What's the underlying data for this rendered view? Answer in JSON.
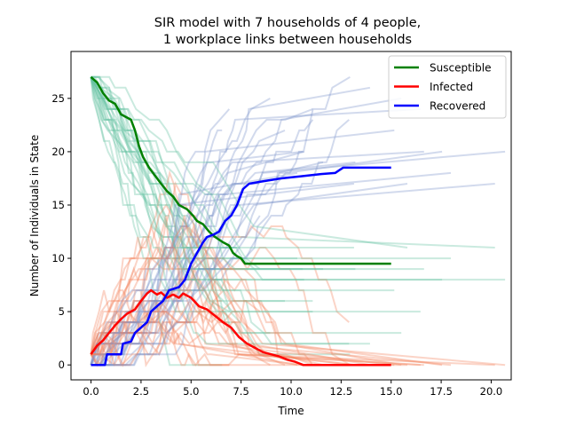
{
  "chart_data": {
    "type": "line",
    "title_line1": "SIR model with 7 households of 4 people,",
    "title_line2": "1 workplace links between households",
    "xlabel": "Time",
    "ylabel": "Number of Individuals in State",
    "xlim": [
      -1.0,
      21.0
    ],
    "ylim": [
      -1.4,
      29.4
    ],
    "xticks": [
      0.0,
      2.5,
      5.0,
      7.5,
      10.0,
      12.5,
      15.0,
      17.5,
      20.0
    ],
    "xtick_labels": [
      "0.0",
      "2.5",
      "5.0",
      "7.5",
      "10.0",
      "12.5",
      "15.0",
      "17.5",
      "20.0"
    ],
    "yticks": [
      0,
      5,
      10,
      15,
      20,
      25
    ],
    "ytick_labels": [
      "0",
      "5",
      "10",
      "15",
      "20",
      "25"
    ],
    "legend_position": "top-right",
    "colors": {
      "susceptible": "#008000",
      "infected": "#ff0000",
      "recovered": "#0000ff",
      "sim_susceptible": "#66c2a4",
      "sim_infected": "#f4845f",
      "sim_recovered": "#7e96cc"
    },
    "series": [
      {
        "name": "Susceptible",
        "color": "#008000",
        "points": [
          [
            0,
            27
          ],
          [
            0.3,
            26.5
          ],
          [
            0.6,
            25.5
          ],
          [
            0.9,
            24.8
          ],
          [
            1.2,
            24.5
          ],
          [
            1.5,
            23.5
          ],
          [
            2.0,
            23.0
          ],
          [
            2.2,
            22.0
          ],
          [
            2.4,
            20.5
          ],
          [
            2.6,
            19.5
          ],
          [
            2.9,
            18.5
          ],
          [
            3.1,
            18.0
          ],
          [
            3.5,
            17.0
          ],
          [
            3.8,
            16.3
          ],
          [
            4.1,
            15.8
          ],
          [
            4.4,
            15.0
          ],
          [
            4.8,
            14.6
          ],
          [
            5.1,
            14.0
          ],
          [
            5.3,
            13.5
          ],
          [
            5.6,
            13.2
          ],
          [
            5.9,
            12.5
          ],
          [
            6.2,
            12.0
          ],
          [
            6.6,
            11.5
          ],
          [
            6.9,
            11.2
          ],
          [
            7.1,
            10.5
          ],
          [
            7.3,
            10.2
          ],
          [
            7.5,
            10.0
          ],
          [
            7.7,
            9.5
          ],
          [
            15.0,
            9.5
          ]
        ]
      },
      {
        "name": "Infected",
        "color": "#ff0000",
        "points": [
          [
            0,
            1
          ],
          [
            0.3,
            1.8
          ],
          [
            0.6,
            2.3
          ],
          [
            0.9,
            3.0
          ],
          [
            1.2,
            3.7
          ],
          [
            1.5,
            4.3
          ],
          [
            1.8,
            4.8
          ],
          [
            2.2,
            5.2
          ],
          [
            2.5,
            6.0
          ],
          [
            2.8,
            6.7
          ],
          [
            3.0,
            7.0
          ],
          [
            3.3,
            6.6
          ],
          [
            3.5,
            6.8
          ],
          [
            3.8,
            6.3
          ],
          [
            4.1,
            6.6
          ],
          [
            4.4,
            6.3
          ],
          [
            4.6,
            6.7
          ],
          [
            5.0,
            6.3
          ],
          [
            5.4,
            5.5
          ],
          [
            5.8,
            5.2
          ],
          [
            6.2,
            4.6
          ],
          [
            6.6,
            4.0
          ],
          [
            7.0,
            3.5
          ],
          [
            7.4,
            2.6
          ],
          [
            7.8,
            2.0
          ],
          [
            8.2,
            1.6
          ],
          [
            8.6,
            1.2
          ],
          [
            9.0,
            1.0
          ],
          [
            9.4,
            0.8
          ],
          [
            9.8,
            0.5
          ],
          [
            10.2,
            0.3
          ],
          [
            10.6,
            0
          ],
          [
            15.0,
            0
          ]
        ]
      },
      {
        "name": "Recovered",
        "color": "#0000ff",
        "points": [
          [
            0,
            0
          ],
          [
            0.7,
            0
          ],
          [
            0.8,
            1
          ],
          [
            1.5,
            1
          ],
          [
            1.6,
            2
          ],
          [
            2.0,
            2.2
          ],
          [
            2.2,
            3.0
          ],
          [
            2.5,
            3.5
          ],
          [
            2.8,
            4.0
          ],
          [
            3.0,
            5.0
          ],
          [
            3.3,
            5.5
          ],
          [
            3.6,
            6.0
          ],
          [
            3.9,
            7.0
          ],
          [
            4.4,
            7.3
          ],
          [
            4.7,
            8.0
          ],
          [
            5.0,
            9.5
          ],
          [
            5.3,
            10.5
          ],
          [
            5.6,
            11.5
          ],
          [
            5.8,
            12.0
          ],
          [
            6.1,
            12.2
          ],
          [
            6.4,
            12.5
          ],
          [
            6.7,
            13.5
          ],
          [
            7.0,
            14.0
          ],
          [
            7.3,
            15.0
          ],
          [
            7.6,
            16.5
          ],
          [
            7.9,
            17.0
          ],
          [
            8.5,
            17.2
          ],
          [
            9.5,
            17.5
          ],
          [
            10.5,
            17.7
          ],
          [
            11.5,
            17.9
          ],
          [
            12.2,
            18.0
          ],
          [
            12.6,
            18.5
          ],
          [
            15.0,
            18.5
          ]
        ]
      }
    ]
  }
}
